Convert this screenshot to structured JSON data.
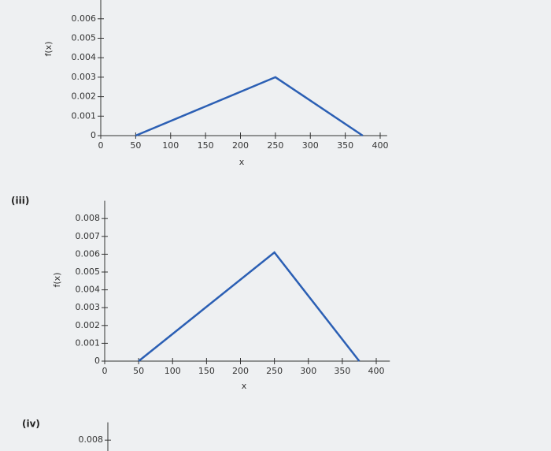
{
  "chart_data": [
    {
      "type": "line",
      "x_label": "x",
      "y_label": "f(x)",
      "xlim": [
        0,
        410
      ],
      "ylim": [
        0,
        0.007
      ],
      "xticks": [
        0,
        50,
        100,
        150,
        200,
        250,
        300,
        350,
        400
      ],
      "yticks": [
        0,
        0.001,
        0.002,
        0.003,
        0.004,
        0.005,
        0.006
      ],
      "series": [
        {
          "color": "#2b5fb4",
          "x": [
            50,
            250,
            375
          ],
          "values": [
            0,
            0.003,
            0
          ]
        }
      ]
    },
    {
      "type": "line",
      "label": "(iii)",
      "x_label": "x",
      "y_label": "f(x)",
      "xlim": [
        0,
        420
      ],
      "ylim": [
        0,
        0.009
      ],
      "xticks": [
        0,
        50,
        100,
        150,
        200,
        250,
        300,
        350,
        400
      ],
      "yticks": [
        0,
        0.001,
        0.002,
        0.003,
        0.004,
        0.005,
        0.006,
        0.007,
        0.008
      ],
      "series": [
        {
          "color": "#2b5fb4",
          "x": [
            50,
            250,
            375
          ],
          "values": [
            0,
            0.0061,
            0
          ]
        }
      ]
    },
    {
      "type": "line",
      "label": "(iv)",
      "ylim": [
        0,
        0.009
      ],
      "yticks": [
        0.008
      ]
    }
  ]
}
